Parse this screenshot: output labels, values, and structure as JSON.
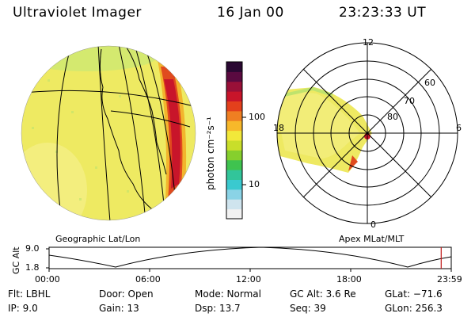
{
  "header": {
    "instrument": "Ultraviolet Imager",
    "date": "16 Jan 00",
    "time": "23:23:33 UT"
  },
  "globe": {
    "caption": "Geographic Lat/Lon"
  },
  "colorbar": {
    "unit": "photon cm⁻²s⁻¹",
    "tick_high": "100",
    "tick_low": "10",
    "colors": [
      "#f2f2f2",
      "#cfe4ee",
      "#8ad3e6",
      "#3ac9cf",
      "#32c59a",
      "#3fc34f",
      "#86cf2d",
      "#c9de2a",
      "#f2e83a",
      "#f7b82a",
      "#ef7f22",
      "#e3401c",
      "#c8152a",
      "#991038",
      "#5a0a40",
      "#2a0832"
    ]
  },
  "polar": {
    "caption": "Apex MLat/MLT",
    "mlt_labels": {
      "top": "12",
      "left": "18",
      "right": "6",
      "bottom": "0"
    },
    "lat_labels": [
      "60",
      "70",
      "80"
    ]
  },
  "altitude_plot": {
    "ylabel": "GC Alt",
    "ytick_high": "9.0",
    "ytick_low": "1.8",
    "xticks": [
      "00:00",
      "06:00",
      "12:00",
      "18:00",
      "23:59"
    ],
    "current_time_fraction": 0.975
  },
  "status": {
    "flt": "Flt: LBHL",
    "ip": "IP:  9.0",
    "door": "Door: Open",
    "gain": "Gain: 13",
    "mode": "Mode: Normal",
    "dsp": "Dsp:   13.7",
    "gc_alt": "GC Alt: 3.6 Re",
    "seq": "Seq: 39",
    "glat": "GLat: −71.6",
    "glon": "GLon: 256.3"
  }
}
